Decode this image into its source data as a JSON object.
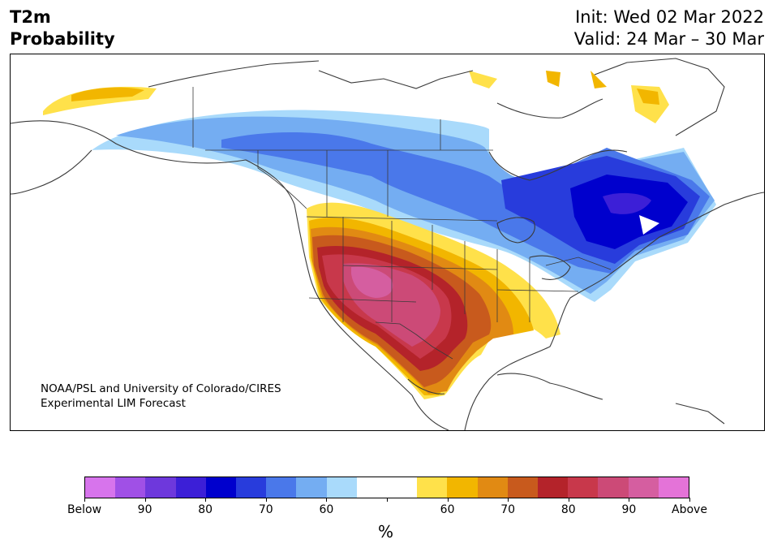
{
  "header": {
    "title_line1": "T2m",
    "title_line2": "Probability",
    "init": "Init: Wed 02 Mar 2022",
    "valid": "Valid: 24 Mar – 30 Mar"
  },
  "map": {
    "credit_line1": "NOAA/PSL and University of Colorado/CIRES",
    "credit_line2": "Experimental LIM Forecast"
  },
  "colorbar": {
    "colors": [
      "#d774ec",
      "#a050e6",
      "#6e38dc",
      "#3c1fd7",
      "#0000cd",
      "#283cdc",
      "#4a78ea",
      "#74adf2",
      "#a9dafb",
      "#ffffff",
      "#ffffff",
      "#ffe14a",
      "#f2b600",
      "#e18a13",
      "#c85a1d",
      "#b4232a",
      "#c8384b",
      "#cc4a77",
      "#d55ea0",
      "#e473d8"
    ],
    "tick_labels": [
      "Below",
      "90",
      "80",
      "70",
      "60",
      "",
      "60",
      "70",
      "80",
      "90",
      "Above"
    ],
    "unit": "%"
  }
}
